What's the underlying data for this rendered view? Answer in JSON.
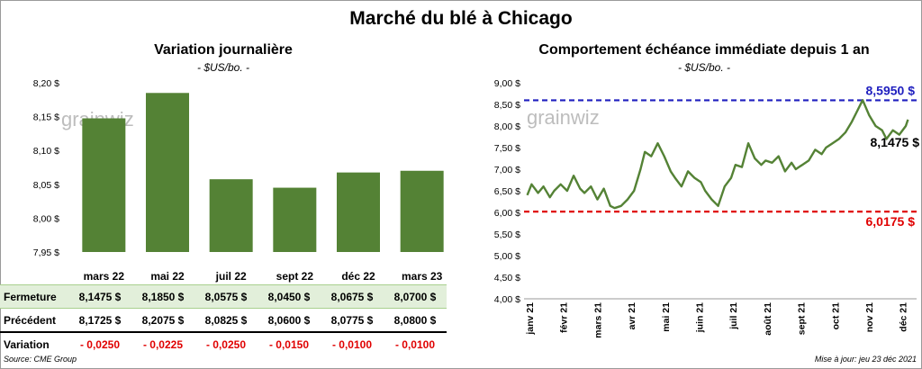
{
  "title": "Marché du blé à Chicago",
  "left_panel": {
    "title": "Variation journalière",
    "subtitle": "- $US/bo. -",
    "watermark": "grainwiz"
  },
  "right_panel": {
    "title": "Comportement échéance immédiate depuis 1 an",
    "subtitle": "- $US/bo. -",
    "watermark": "grainwiz"
  },
  "table": {
    "rows": [
      {
        "label": "Fermeture",
        "values": [
          "8,1475  $",
          "8,1850  $",
          "8,0575  $",
          "8,0450  $",
          "8,0675  $",
          "8,0700  $"
        ]
      },
      {
        "label": "Précédent",
        "values": [
          "8,1725  $",
          "8,2075  $",
          "8,0825  $",
          "8,0600  $",
          "8,0775  $",
          "8,0800  $"
        ]
      },
      {
        "label": "Variation",
        "values": [
          "- 0,0250",
          "- 0,0225",
          "- 0,0250",
          "- 0,0150",
          "- 0,0100",
          "- 0,0100"
        ]
      }
    ]
  },
  "footer": {
    "source": "Source: CME Group",
    "updated": "Mise à jour: jeu 23 déc 2021"
  },
  "colors": {
    "bar": "#548235",
    "line": "#548235",
    "high_line": "#1f1fbf",
    "low_line": "#e00000"
  },
  "chart_data": [
    {
      "type": "bar",
      "categories": [
        "mars 22",
        "mai 22",
        "juil 22",
        "sept 22",
        "déc 22",
        "mars 23"
      ],
      "values": [
        8.1475,
        8.185,
        8.0575,
        8.045,
        8.0675,
        8.07
      ],
      "ylim": [
        7.95,
        8.2
      ],
      "yticks": [
        7.95,
        8.0,
        8.05,
        8.1,
        8.15,
        8.2
      ],
      "ytick_labels": [
        "7,95 $",
        "8,00 $",
        "8,05 $",
        "8,10 $",
        "8,15 $",
        "8,20 $"
      ],
      "grid": false
    },
    {
      "type": "line",
      "ylim": [
        4.0,
        9.0
      ],
      "yticks": [
        4.0,
        4.5,
        5.0,
        5.5,
        6.0,
        6.5,
        7.0,
        7.5,
        8.0,
        8.5,
        9.0
      ],
      "ytick_labels": [
        "4,00 $",
        "4,50 $",
        "5,00 $",
        "5,50 $",
        "6,00 $",
        "6,50 $",
        "7,00 $",
        "7,50 $",
        "8,00 $",
        "8,50 $",
        "9,00 $"
      ],
      "x_labels": [
        "janv 21",
        "févr 21",
        "mars 21",
        "avr 21",
        "mai 21",
        "juin 21",
        "juil 21",
        "août 21",
        "sept 21",
        "oct 21",
        "nov 21",
        "déc 21"
      ],
      "x": [
        "2021-01-04",
        "2021-01-08",
        "2021-01-14",
        "2021-01-19",
        "2021-01-25",
        "2021-01-29",
        "2021-02-04",
        "2021-02-10",
        "2021-02-16",
        "2021-02-22",
        "2021-02-26",
        "2021-03-04",
        "2021-03-10",
        "2021-03-16",
        "2021-03-22",
        "2021-03-26",
        "2021-04-01",
        "2021-04-07",
        "2021-04-13",
        "2021-04-19",
        "2021-04-23",
        "2021-04-29",
        "2021-05-05",
        "2021-05-11",
        "2021-05-17",
        "2021-05-21",
        "2021-05-27",
        "2021-06-02",
        "2021-06-08",
        "2021-06-14",
        "2021-06-18",
        "2021-06-24",
        "2021-06-30",
        "2021-07-06",
        "2021-07-12",
        "2021-07-16",
        "2021-07-22",
        "2021-07-28",
        "2021-08-03",
        "2021-08-09",
        "2021-08-13",
        "2021-08-19",
        "2021-08-25",
        "2021-08-31",
        "2021-09-06",
        "2021-09-10",
        "2021-09-16",
        "2021-09-22",
        "2021-09-28",
        "2021-10-04",
        "2021-10-08",
        "2021-10-14",
        "2021-10-20",
        "2021-10-26",
        "2021-11-01",
        "2021-11-05",
        "2021-11-11",
        "2021-11-17",
        "2021-11-23",
        "2021-11-29",
        "2021-12-03",
        "2021-12-09",
        "2021-12-15",
        "2021-12-21",
        "2021-12-23"
      ],
      "values": [
        6.4,
        6.65,
        6.45,
        6.6,
        6.35,
        6.5,
        6.65,
        6.5,
        6.85,
        6.55,
        6.45,
        6.6,
        6.3,
        6.55,
        6.15,
        6.1,
        6.15,
        6.3,
        6.5,
        7.0,
        7.4,
        7.3,
        7.6,
        7.3,
        6.95,
        6.8,
        6.6,
        6.95,
        6.8,
        6.7,
        6.5,
        6.3,
        6.15,
        6.6,
        6.8,
        7.1,
        7.05,
        7.6,
        7.25,
        7.1,
        7.2,
        7.15,
        7.3,
        6.95,
        7.15,
        7.0,
        7.1,
        7.2,
        7.45,
        7.35,
        7.5,
        7.6,
        7.7,
        7.85,
        8.1,
        8.3,
        8.6,
        8.25,
        8.0,
        7.9,
        7.7,
        7.9,
        7.8,
        8.0,
        8.1475
      ],
      "reference_lines": [
        {
          "value": 8.595,
          "label": "8,5950  $",
          "color": "#1f1fbf"
        },
        {
          "value": 6.0175,
          "label": "6,0175  $",
          "color": "#e00000"
        }
      ],
      "last_value_label": "8,1475 $",
      "grid": false
    }
  ]
}
